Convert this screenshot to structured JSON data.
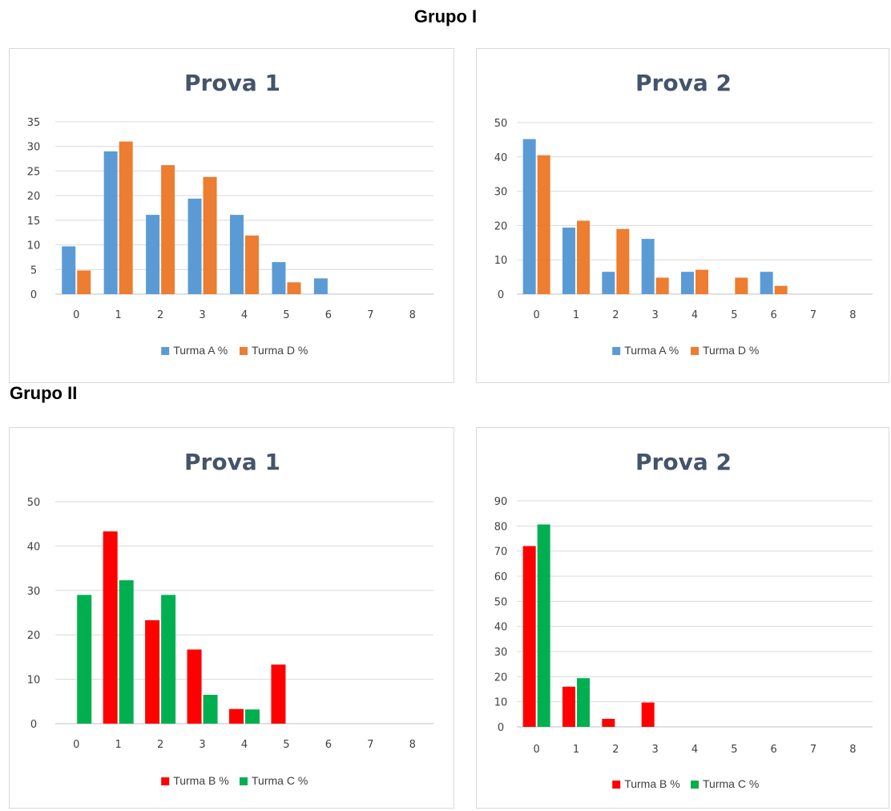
{
  "groups": {
    "g1": "Grupo I",
    "g2": "Grupo II"
  },
  "chart_data": [
    {
      "type": "bar",
      "title": "Prova 1",
      "categories": [
        "0",
        "1",
        "2",
        "3",
        "4",
        "5",
        "6",
        "7",
        "8"
      ],
      "ylim": [
        0,
        35
      ],
      "yticks": [
        0,
        5,
        10,
        15,
        20,
        25,
        30,
        35
      ],
      "series": [
        {
          "name": "Turma A %",
          "color": "#5b9bd5",
          "values": [
            9.7,
            29.0,
            16.1,
            19.4,
            16.1,
            6.5,
            3.2,
            0,
            0
          ]
        },
        {
          "name": "Turma D %",
          "color": "#ed7d31",
          "values": [
            4.8,
            31.0,
            26.2,
            23.8,
            11.9,
            2.4,
            0,
            0,
            0
          ]
        }
      ],
      "grid": true,
      "legend": "bottom"
    },
    {
      "type": "bar",
      "title": "Prova 2",
      "categories": [
        "0",
        "1",
        "2",
        "3",
        "4",
        "5",
        "6",
        "7",
        "8"
      ],
      "ylim": [
        0,
        50
      ],
      "yticks": [
        0,
        10,
        20,
        30,
        40,
        50
      ],
      "series": [
        {
          "name": "Turma A %",
          "color": "#5b9bd5",
          "values": [
            45.2,
            19.4,
            6.5,
            16.1,
            6.5,
            0,
            6.5,
            0,
            0
          ]
        },
        {
          "name": "Turma D %",
          "color": "#ed7d31",
          "values": [
            40.5,
            21.4,
            19.0,
            4.8,
            7.1,
            4.8,
            2.4,
            0,
            0
          ]
        }
      ],
      "grid": true,
      "legend": "bottom"
    },
    {
      "type": "bar",
      "title": "Prova 1",
      "categories": [
        "0",
        "1",
        "2",
        "3",
        "4",
        "5",
        "6",
        "7",
        "8"
      ],
      "ylim": [
        0,
        50
      ],
      "yticks": [
        0,
        10,
        20,
        30,
        40,
        50
      ],
      "series": [
        {
          "name": "Turma B %",
          "color": "#ff0000",
          "values": [
            0,
            43.3,
            23.3,
            16.7,
            3.3,
            13.3,
            0,
            0,
            0
          ]
        },
        {
          "name": "Turma C %",
          "color": "#00b050",
          "values": [
            29.0,
            32.3,
            29.0,
            6.5,
            3.2,
            0,
            0,
            0,
            0
          ]
        }
      ],
      "grid": true,
      "legend": "bottom"
    },
    {
      "type": "bar",
      "title": "Prova 2",
      "categories": [
        "0",
        "1",
        "2",
        "3",
        "4",
        "5",
        "6",
        "7",
        "8"
      ],
      "ylim": [
        0,
        90
      ],
      "yticks": [
        0,
        10,
        20,
        30,
        40,
        50,
        60,
        70,
        80,
        90
      ],
      "series": [
        {
          "name": "Turma B %",
          "color": "#ff0000",
          "values": [
            72.0,
            16.0,
            3.2,
            9.7,
            0,
            0,
            0,
            0,
            0
          ]
        },
        {
          "name": "Turma C %",
          "color": "#00b050",
          "values": [
            80.6,
            19.4,
            0,
            0,
            0,
            0,
            0,
            0,
            0
          ]
        }
      ],
      "grid": true,
      "legend": "bottom"
    }
  ]
}
